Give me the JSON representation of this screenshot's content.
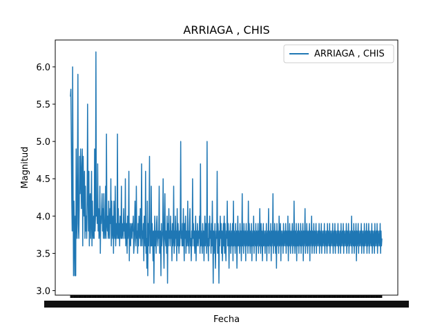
{
  "chart_data": {
    "type": "line",
    "title": "ARRIAGA , CHIS",
    "xlabel": "Fecha",
    "ylabel": "Magnitud",
    "ylim": [
      2.94,
      6.36
    ],
    "yticks": [
      "3.0",
      "3.5",
      "4.0",
      "4.5",
      "5.0",
      "5.5",
      "6.0"
    ],
    "legend_position": "top-right",
    "grid": false,
    "series": [
      {
        "name": "ARRIAGA , CHIS",
        "color": "#1f77b4",
        "values": [
          5.6,
          5.7,
          5.0,
          4.2,
          3.8,
          6.0,
          4.4,
          3.2,
          4.2,
          3.8,
          3.2,
          4.0,
          3.2,
          4.9,
          4.0,
          3.7,
          4.6,
          5.9,
          3.9,
          3.7,
          4.1,
          4.8,
          4.3,
          4.9,
          4.6,
          4.1,
          4.6,
          4.9,
          3.6,
          4.8,
          4.2,
          4.0,
          4.6,
          3.7,
          4.4,
          3.8,
          4.0,
          3.7,
          4.2,
          5.5,
          4.3,
          3.8,
          4.6,
          3.6,
          4.2,
          4.3,
          3.7,
          4.0,
          4.6,
          3.6,
          4.2,
          3.8,
          3.7,
          4.0,
          3.7,
          4.9,
          3.8,
          4.0,
          6.2,
          4.0,
          4.1,
          3.9,
          4.7,
          3.8,
          4.1,
          3.7,
          3.8,
          4.4,
          3.5,
          4.0,
          3.9,
          4.1,
          4.3,
          3.8,
          4.1,
          3.7,
          4.3,
          3.9,
          3.7,
          3.8,
          4.4,
          3.7,
          5.1,
          3.9,
          3.8,
          4.0,
          3.7,
          4.2,
          3.8,
          3.7,
          4.1,
          3.9,
          4.5,
          3.6,
          4.2,
          3.8,
          3.7,
          4.0,
          3.5,
          4.2,
          3.8,
          3.7,
          4.4,
          3.6,
          3.9,
          3.7,
          3.8,
          5.1,
          3.7,
          4.1,
          3.7,
          3.9,
          3.6,
          4.0,
          3.8,
          3.7,
          4.4,
          3.7,
          3.9,
          3.8,
          3.7,
          4.1,
          3.8,
          3.9,
          3.7,
          4.5,
          3.6,
          3.7,
          3.9,
          3.5,
          4.0,
          3.7,
          3.8,
          4.6,
          3.4,
          3.9,
          3.7,
          3.6,
          3.9,
          3.8,
          3.7,
          3.9,
          3.8,
          4.0,
          3.5,
          3.6,
          3.9,
          4.2,
          3.7,
          3.6,
          4.4,
          3.7,
          3.8,
          3.5,
          3.9,
          3.6,
          4.0,
          3.8,
          3.7,
          4.1,
          3.6,
          3.9,
          4.7,
          3.6,
          3.8,
          3.7,
          3.9,
          3.4,
          4.0,
          3.8,
          3.6,
          4.6,
          3.5,
          3.7,
          3.3,
          4.2,
          3.2,
          3.9,
          3.6,
          4.0,
          4.8,
          3.5,
          3.8,
          3.6,
          4.4,
          3.6,
          3.9,
          3.7,
          3.4,
          3.8,
          3.1,
          3.7,
          4.0,
          3.6,
          3.8,
          3.5,
          3.9,
          4.0,
          3.7,
          3.6,
          3.8,
          3.7,
          4.4,
          3.5,
          3.7,
          3.8,
          3.2,
          3.9,
          3.6,
          3.7,
          3.8,
          4.5,
          3.6,
          3.3,
          3.9,
          4.3,
          3.7,
          3.6,
          3.8,
          3.5,
          4.0,
          3.1,
          3.9,
          3.6,
          4.1,
          3.7,
          3.8,
          3.6,
          4.0,
          3.7,
          3.8,
          3.4,
          3.9,
          3.6,
          3.7,
          4.4,
          3.5,
          3.8,
          3.6,
          4.0,
          3.7,
          3.8,
          3.4,
          4.1,
          3.6,
          3.9,
          3.7,
          3.5,
          3.8,
          3.6,
          3.9,
          5.0,
          3.7,
          3.8,
          3.6,
          3.9,
          3.6,
          4.1,
          3.7,
          3.4,
          3.9,
          3.7,
          4.0,
          3.5,
          3.8,
          3.6,
          3.7,
          4.2,
          3.6,
          3.8,
          3.5,
          3.9,
          4.1,
          3.6,
          3.7,
          3.4,
          3.8,
          3.6,
          4.5,
          3.7,
          3.9,
          3.6,
          3.8,
          3.5,
          3.7,
          4.0,
          3.4,
          3.8,
          3.6,
          3.9,
          3.7,
          3.6,
          3.8,
          3.7,
          4.0,
          3.5,
          4.7,
          3.6,
          3.8,
          3.7,
          3.5,
          3.9,
          3.6,
          3.8,
          3.4,
          3.7,
          4.0,
          3.6,
          3.9,
          3.8,
          3.5,
          5.0,
          3.6,
          3.7,
          3.4,
          3.9,
          3.6,
          4.0,
          3.7,
          3.8,
          3.5,
          3.9,
          3.6,
          4.2,
          3.7,
          3.1,
          3.8,
          3.5,
          3.7,
          3.9,
          3.3,
          3.6,
          3.8,
          3.7,
          4.6,
          3.5,
          3.9,
          3.7,
          3.1,
          3.8,
          3.6,
          4.0,
          3.7,
          3.9,
          3.5,
          3.8,
          3.4,
          3.7,
          3.9,
          3.6,
          4.0,
          3.5,
          3.9,
          3.6,
          3.4,
          3.8,
          3.7,
          4.2,
          3.6,
          3.9,
          3.7,
          3.3,
          3.8,
          3.6,
          3.9,
          3.5,
          3.7,
          3.8,
          3.6,
          3.9,
          3.4,
          4.2,
          3.6,
          3.8,
          3.7,
          3.5,
          3.9,
          3.6,
          3.8,
          3.3,
          3.7,
          4.0,
          3.6,
          3.8,
          3.7,
          3.5,
          3.9,
          3.6,
          3.8,
          3.4,
          3.7,
          4.3,
          3.6,
          3.8,
          3.5,
          3.9,
          3.7,
          3.6,
          3.8,
          3.4,
          3.9,
          3.6,
          3.7,
          3.8,
          3.5,
          4.2,
          3.6,
          3.9,
          3.7,
          3.5,
          3.8,
          3.6,
          3.9,
          3.4,
          3.7,
          3.8,
          3.6,
          4.0,
          3.5,
          3.8,
          3.7,
          3.6,
          3.9,
          3.4,
          3.8,
          3.6,
          3.7,
          3.9,
          3.5,
          3.8,
          3.6,
          4.1,
          3.7,
          3.5,
          3.9,
          3.6,
          3.8,
          3.4,
          3.7,
          3.9,
          3.6,
          3.8,
          3.7,
          3.5,
          3.8,
          3.6,
          3.9,
          3.4,
          3.7,
          3.8,
          3.6,
          4.1,
          3.5,
          3.8,
          3.7,
          3.6,
          3.9,
          3.4,
          3.8,
          3.6,
          3.7,
          4.3,
          3.5,
          3.8,
          3.6,
          3.9,
          3.7,
          3.5,
          3.8,
          3.3,
          3.9,
          3.6,
          3.7,
          3.8,
          3.5,
          4.0,
          3.6,
          3.7,
          3.9,
          3.4,
          3.8,
          3.6,
          3.7,
          3.8,
          3.5,
          3.9,
          3.6,
          3.7,
          3.8,
          3.6,
          3.9,
          3.5,
          3.8,
          3.7,
          3.6,
          4.0,
          3.4,
          3.8,
          3.6,
          3.9,
          3.7,
          3.5,
          3.8,
          3.6,
          3.7,
          3.9,
          3.5,
          3.8,
          3.6,
          4.2,
          3.7,
          3.5,
          3.8,
          3.6,
          3.9,
          3.4,
          3.7,
          3.8,
          3.6,
          3.9,
          3.5,
          3.8,
          3.7,
          3.6,
          3.9,
          3.5,
          3.8,
          3.6,
          3.7,
          3.9,
          3.4,
          3.8,
          3.6,
          3.7,
          4.1,
          3.5,
          3.8,
          3.6,
          3.9,
          3.7,
          3.5,
          3.8,
          3.6,
          3.7,
          3.9,
          3.4,
          3.8,
          3.6,
          3.7,
          4.0,
          3.5,
          3.8,
          3.6,
          3.7,
          3.9,
          3.5,
          3.8,
          3.6,
          3.7,
          3.9,
          3.5,
          3.8,
          3.6,
          3.7,
          3.8,
          3.6,
          3.9,
          3.5,
          3.8,
          3.7,
          3.6,
          3.9,
          3.5,
          3.8,
          3.6,
          3.7,
          3.8,
          3.6,
          3.9,
          3.5,
          3.8,
          3.7,
          3.6,
          3.8,
          3.5,
          3.9,
          3.6,
          3.8,
          3.7,
          3.6,
          3.9,
          3.5,
          3.8,
          3.6,
          3.7,
          3.8,
          3.6,
          3.9,
          3.5,
          3.7,
          3.8,
          3.6,
          3.9,
          3.5,
          3.8,
          3.6,
          3.7,
          3.8,
          3.6,
          3.9,
          3.5,
          3.8,
          3.7,
          3.6,
          3.8,
          3.5,
          3.9,
          3.6,
          3.7,
          3.8,
          3.6,
          3.9,
          3.5,
          3.8,
          3.6,
          3.7,
          3.8,
          3.6,
          3.9,
          3.5,
          3.8,
          3.6,
          3.7,
          3.9,
          3.5,
          3.8,
          3.6,
          3.7,
          3.8,
          3.6,
          4.0,
          3.5,
          3.8,
          3.7,
          3.6,
          3.9,
          3.5,
          3.8,
          3.6,
          3.7,
          3.9,
          3.4,
          3.8,
          3.6,
          3.7,
          3.9,
          3.5,
          3.8,
          3.6,
          3.7,
          3.8,
          3.6,
          3.9,
          3.5,
          3.8,
          3.7,
          3.6,
          3.8,
          3.5,
          3.9,
          3.6,
          3.7,
          3.8,
          3.6,
          3.9,
          3.5,
          3.8,
          3.6,
          3.7,
          3.9,
          3.5,
          3.8,
          3.6,
          3.7,
          3.8,
          3.6,
          3.9,
          3.5,
          3.8,
          3.7,
          3.6,
          3.8,
          3.5,
          3.9,
          3.6,
          3.7,
          3.8,
          3.6,
          3.9,
          3.5,
          3.8,
          3.6,
          3.7,
          3.8,
          3.6,
          3.9,
          3.5,
          3.8,
          3.6,
          3.7
        ]
      }
    ]
  }
}
